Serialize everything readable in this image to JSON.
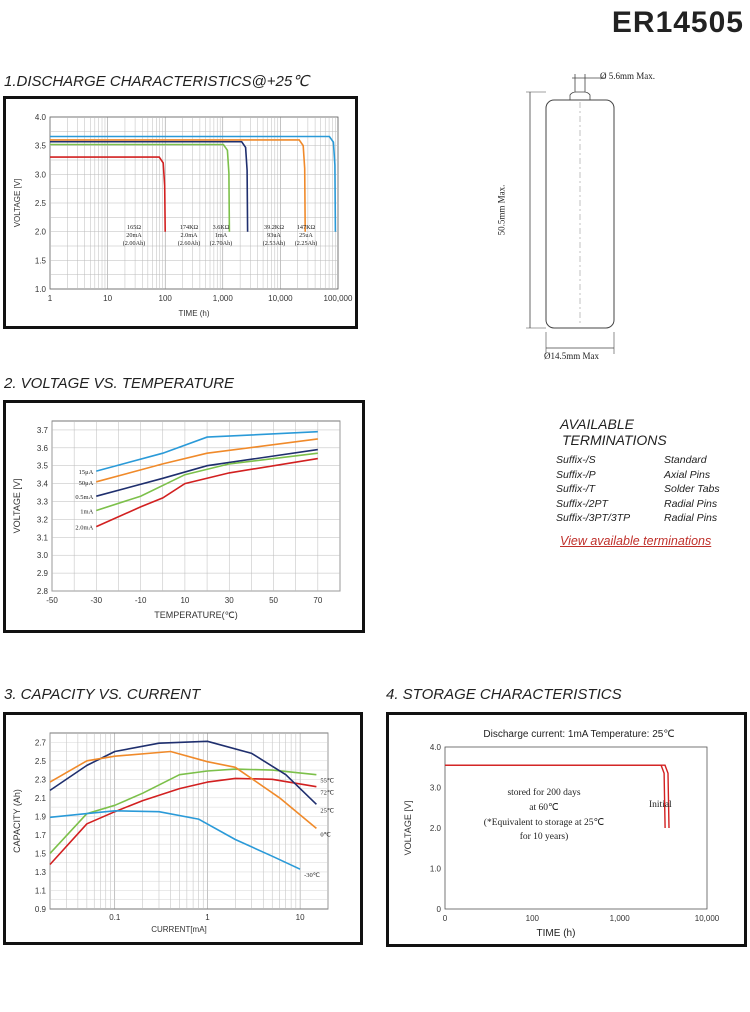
{
  "product_title": "ER14505",
  "sections": {
    "discharge": "1.DISCHARGE CHARACTERISTICS@+25℃",
    "voltage_temp": "2. VOLTAGE VS. TEMPERATURE",
    "capacity_current": "3. CAPACITY VS. CURRENT",
    "storage": "4. STORAGE CHARACTERISTICS"
  },
  "dimensions": {
    "top_diameter": "Ø 5.6mm Max.",
    "length": "50.5mm Max.",
    "diameter": "Ø14.5mm Max"
  },
  "terminations": {
    "heading_line1": "AVAILABLE",
    "heading_line2": "TERMINATIONS",
    "items": [
      {
        "suffix": "Suffix-/S",
        "type": "Standard"
      },
      {
        "suffix": "Suffix-/P",
        "type": "Axial Pins"
      },
      {
        "suffix": "Suffix-/T",
        "type": "Solder Tabs"
      },
      {
        "suffix": "Suffix-/2PT",
        "type": "Radial Pins"
      },
      {
        "suffix": "Suffix-/3PT/3TP",
        "type": "Radial Pins"
      }
    ],
    "link_text": "View available terminations",
    "link_color": "#c0302b"
  },
  "chart_data": [
    {
      "type": "line",
      "xscale": "log",
      "xlabel": "TIME (h)",
      "ylabel": "VOLTAGE [V]",
      "xlim": [
        1,
        100000
      ],
      "ylim": [
        1.0,
        4.0
      ],
      "x_ticks": [
        "1",
        "10",
        "100",
        "1,000",
        "10,000",
        "100,000"
      ],
      "y_ticks": [
        "1.0",
        "1.5",
        "2.0",
        "2.5",
        "3.0",
        "3.5",
        "4.0"
      ],
      "grid": true,
      "series": [
        {
          "label": [
            "165Ω",
            "20mA",
            "(2.00Ah)"
          ],
          "color": "#d22020",
          "plateau": 3.3,
          "end_hours": 100
        },
        {
          "label": [
            "174KΩ",
            "2.0mA",
            "(2.60Ah)"
          ],
          "color": "#7cc04a",
          "plateau": 3.52,
          "end_hours": 1300
        },
        {
          "label": [
            "3.6KΩ",
            "1mA",
            "(2.70Ah)"
          ],
          "color": "#1f2f6e",
          "plateau": 3.57,
          "end_hours": 2700
        },
        {
          "label": [
            "39.2KΩ",
            "93uA",
            "(2.53Ah)"
          ],
          "color": "#f08a2a",
          "plateau": 3.6,
          "end_hours": 27000
        },
        {
          "label": [
            "147KΩ",
            "25uA",
            "(2.25Ah)"
          ],
          "color": "#2a9ad8",
          "plateau": 3.66,
          "end_hours": 90000
        }
      ]
    },
    {
      "type": "line",
      "xlabel": "TEMPERATURE(℃)",
      "ylabel": "VOLTAGE [V]",
      "xlim": [
        -50,
        80
      ],
      "ylim": [
        2.8,
        3.75
      ],
      "x_ticks": [
        "-50",
        "-30",
        "-10",
        "10",
        "30",
        "50",
        "70"
      ],
      "y_ticks": [
        "2.8",
        "2.9",
        "3.0",
        "3.1",
        "3.2",
        "3.3",
        "3.4",
        "3.5",
        "3.6",
        "3.7"
      ],
      "grid": true,
      "series": [
        {
          "name": "15μA",
          "color": "#2a9ad8",
          "x": [
            -30,
            0,
            20,
            70
          ],
          "y": [
            3.47,
            3.57,
            3.66,
            3.69
          ]
        },
        {
          "name": "50μA",
          "color": "#f08a2a",
          "x": [
            -30,
            0,
            20,
            70
          ],
          "y": [
            3.41,
            3.51,
            3.57,
            3.65
          ]
        },
        {
          "name": "0.5mA",
          "color": "#1f2f6e",
          "x": [
            -30,
            0,
            20,
            70
          ],
          "y": [
            3.33,
            3.43,
            3.5,
            3.59
          ]
        },
        {
          "name": "1mA",
          "color": "#7cc04a",
          "x": [
            -30,
            -10,
            10,
            30,
            70
          ],
          "y": [
            3.25,
            3.33,
            3.45,
            3.51,
            3.57
          ]
        },
        {
          "name": "2.0mA",
          "color": "#d22020",
          "x": [
            -30,
            -10,
            0,
            10,
            30,
            70
          ],
          "y": [
            3.16,
            3.27,
            3.32,
            3.4,
            3.46,
            3.54
          ]
        }
      ]
    },
    {
      "type": "line",
      "xscale": "log",
      "xlabel": "CURRENT[mA]",
      "ylabel": "CAPACITY (Ah)",
      "xlim": [
        0.02,
        20
      ],
      "ylim": [
        0.9,
        2.8
      ],
      "x_ticks": [
        "0.1",
        "1",
        "10"
      ],
      "y_ticks": [
        "0.9",
        "1.1",
        "1.3",
        "1.5",
        "1.7",
        "1.9",
        "2.1",
        "2.3",
        "2.5",
        "2.7"
      ],
      "grid": true,
      "series": [
        {
          "name": "55℃",
          "color": "#7cc04a",
          "x": [
            0.02,
            0.05,
            0.1,
            0.2,
            0.5,
            1,
            2,
            5,
            15
          ],
          "y": [
            1.5,
            1.93,
            2.02,
            2.15,
            2.35,
            2.39,
            2.41,
            2.4,
            2.35
          ]
        },
        {
          "name": "72℃",
          "color": "#d22020",
          "x": [
            0.02,
            0.05,
            0.1,
            0.2,
            0.5,
            1,
            2,
            5,
            15
          ],
          "y": [
            1.38,
            1.82,
            1.95,
            2.07,
            2.2,
            2.27,
            2.31,
            2.3,
            2.22
          ]
        },
        {
          "name": "25℃",
          "color": "#1f2f6e",
          "x": [
            0.02,
            0.05,
            0.1,
            0.3,
            1,
            3,
            7,
            15
          ],
          "y": [
            2.18,
            2.45,
            2.6,
            2.69,
            2.71,
            2.58,
            2.35,
            2.03
          ]
        },
        {
          "name": "0℃",
          "color": "#f08a2a",
          "x": [
            0.02,
            0.05,
            0.1,
            0.4,
            1,
            2,
            6,
            15
          ],
          "y": [
            2.27,
            2.5,
            2.55,
            2.6,
            2.49,
            2.43,
            2.1,
            1.77
          ]
        },
        {
          "name": "-30℃",
          "color": "#2a9ad8",
          "x": [
            0.02,
            0.05,
            0.1,
            0.3,
            0.8,
            2,
            5,
            10
          ],
          "y": [
            1.89,
            1.93,
            1.96,
            1.95,
            1.87,
            1.65,
            1.47,
            1.33
          ]
        }
      ]
    },
    {
      "type": "line",
      "title": "Discharge current: 1mA  Temperature:  25℃",
      "xlabel": "TIME (h)",
      "ylabel": "VOLTAGE [V]",
      "xlim": [
        0,
        10000
      ],
      "ylim": [
        0,
        4.0
      ],
      "x_ticks": [
        "0",
        "100",
        "1,000",
        "10,000"
      ],
      "y_ticks": [
        "0",
        "1.0",
        "2.0",
        "3.0",
        "4.0"
      ],
      "grid": false,
      "annotations": [
        "stored for 200 days",
        "at 60℃",
        "(*Equivalent to storage at 25℃",
        "for 10 years)",
        "Initial"
      ],
      "series": [
        {
          "name": "stored",
          "color": "#d22020",
          "plateau": 3.55,
          "end_fraction": 0.84
        },
        {
          "name": "Initial",
          "color": "#d22020",
          "plateau": 3.55,
          "end_fraction": 0.855
        }
      ]
    }
  ]
}
